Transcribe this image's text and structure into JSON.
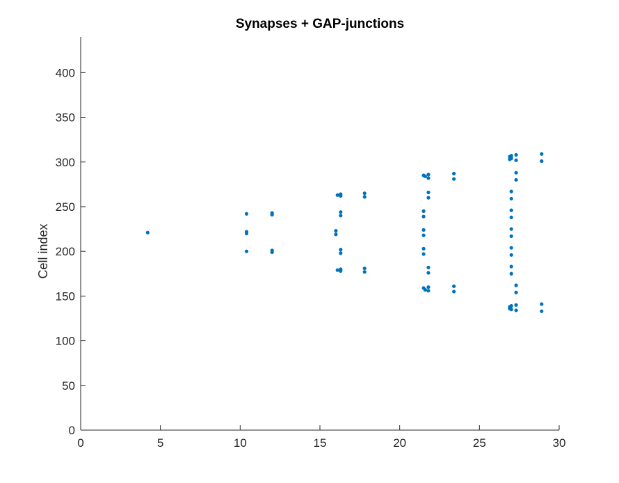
{
  "chart_data": {
    "type": "scatter",
    "title": "Synapses + GAP-junctions",
    "xlabel": "",
    "ylabel": "Cell index",
    "xlim": [
      0,
      30
    ],
    "ylim": [
      0,
      440
    ],
    "xticks": [
      0,
      5,
      10,
      15,
      20,
      25,
      30
    ],
    "yticks": [
      0,
      50,
      100,
      150,
      200,
      250,
      300,
      350,
      400
    ],
    "grid": false,
    "marker_color": "#0072BD",
    "points": [
      [
        4.2,
        221
      ],
      [
        10.4,
        242
      ],
      [
        10.4,
        222
      ],
      [
        10.4,
        220
      ],
      [
        10.4,
        200
      ],
      [
        12.0,
        243
      ],
      [
        12.0,
        241
      ],
      [
        12.0,
        201
      ],
      [
        12.0,
        199
      ],
      [
        16.0,
        223
      ],
      [
        16.0,
        219
      ],
      [
        16.1,
        263
      ],
      [
        16.1,
        179
      ],
      [
        16.3,
        264
      ],
      [
        16.3,
        262
      ],
      [
        16.3,
        244
      ],
      [
        16.3,
        240
      ],
      [
        16.3,
        202
      ],
      [
        16.3,
        198
      ],
      [
        16.3,
        180
      ],
      [
        16.3,
        178
      ],
      [
        17.8,
        265
      ],
      [
        17.8,
        261
      ],
      [
        17.8,
        181
      ],
      [
        17.8,
        177
      ],
      [
        21.5,
        285
      ],
      [
        21.5,
        245
      ],
      [
        21.5,
        239
      ],
      [
        21.5,
        224
      ],
      [
        21.5,
        218
      ],
      [
        21.5,
        203
      ],
      [
        21.5,
        197
      ],
      [
        21.5,
        159
      ],
      [
        21.6,
        284
      ],
      [
        21.6,
        157
      ],
      [
        21.8,
        286
      ],
      [
        21.8,
        282
      ],
      [
        21.8,
        266
      ],
      [
        21.8,
        260
      ],
      [
        21.8,
        182
      ],
      [
        21.8,
        176
      ],
      [
        21.8,
        160
      ],
      [
        21.8,
        156
      ],
      [
        23.4,
        287
      ],
      [
        23.4,
        281
      ],
      [
        23.4,
        161
      ],
      [
        23.4,
        155
      ],
      [
        26.9,
        306
      ],
      [
        26.9,
        303
      ],
      [
        26.9,
        138
      ],
      [
        26.9,
        136
      ],
      [
        27.0,
        307
      ],
      [
        27.0,
        304
      ],
      [
        27.0,
        267
      ],
      [
        27.0,
        259
      ],
      [
        27.0,
        246
      ],
      [
        27.0,
        238
      ],
      [
        27.0,
        225
      ],
      [
        27.0,
        217
      ],
      [
        27.0,
        204
      ],
      [
        27.0,
        196
      ],
      [
        27.0,
        183
      ],
      [
        27.0,
        175
      ],
      [
        27.0,
        139
      ],
      [
        27.0,
        135
      ],
      [
        27.3,
        308
      ],
      [
        27.3,
        302
      ],
      [
        27.3,
        288
      ],
      [
        27.3,
        280
      ],
      [
        27.3,
        162
      ],
      [
        27.3,
        154
      ],
      [
        27.3,
        140
      ],
      [
        27.3,
        134
      ],
      [
        28.9,
        309
      ],
      [
        28.9,
        301
      ],
      [
        28.9,
        141
      ],
      [
        28.9,
        133
      ]
    ]
  }
}
